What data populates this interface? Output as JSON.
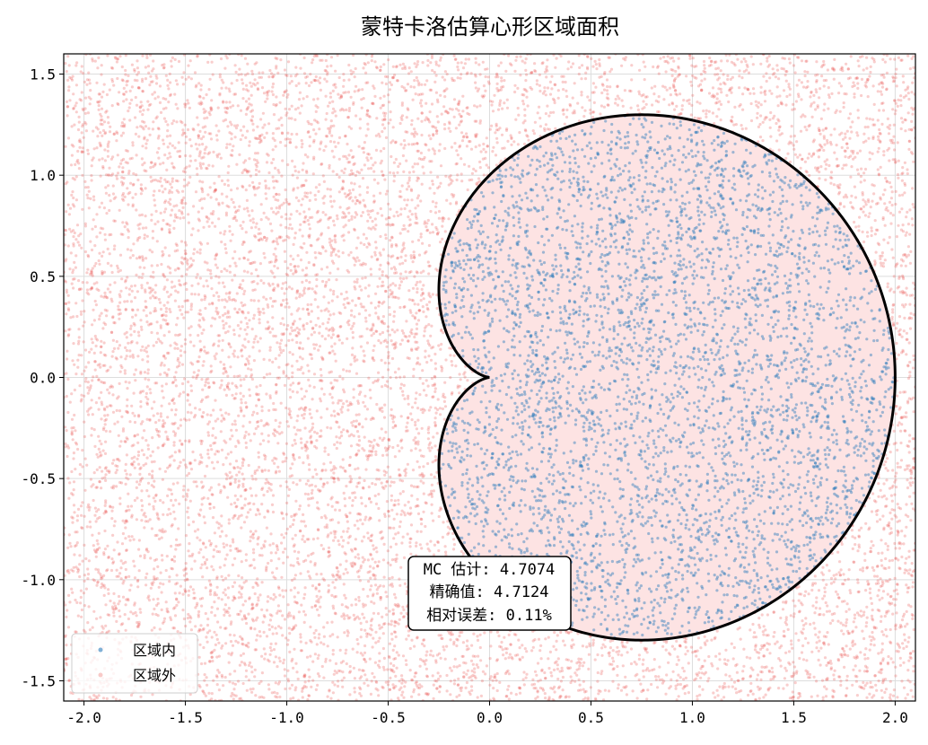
{
  "chart_data": {
    "type": "scatter",
    "title": "蒙特卡洛估算心形区域面积",
    "xlabel": "",
    "ylabel": "",
    "xlim": [
      -2.1,
      2.1
    ],
    "ylim": [
      -1.6,
      1.6
    ],
    "xticks": [
      -2.0,
      -1.5,
      -1.0,
      -0.5,
      0.0,
      0.5,
      1.0,
      1.5,
      2.0
    ],
    "xtick_labels": [
      "-2.0",
      "-1.5",
      "-1.0",
      "-0.5",
      "0.0",
      "0.5",
      "1.0",
      "1.5",
      "2.0"
    ],
    "yticks": [
      -1.5,
      -1.0,
      -0.5,
      0.0,
      0.5,
      1.0,
      1.5
    ],
    "ytick_labels": [
      "-1.5",
      "-1.0",
      "-0.5",
      "0.0",
      "0.5",
      "1.0",
      "1.5"
    ],
    "grid": true,
    "region": {
      "curve": "cardioid",
      "equation": "r = 1 + cos(theta)",
      "fill_color": "#fde3e3",
      "edge_color": "#000000"
    },
    "series": [
      {
        "name": "区域内",
        "color": "#2b7bba",
        "points": "uniform random samples inside the region"
      },
      {
        "name": "区域外",
        "color": "#e8504a",
        "points": "uniform random samples outside the region"
      }
    ],
    "annotation": {
      "lines": [
        "MC 估计: 4.7074",
        "精确值: 4.7124",
        "相对误差: 0.11%"
      ],
      "x": 0.0,
      "y": -1.05
    },
    "legend": {
      "position": "lower-left"
    }
  }
}
